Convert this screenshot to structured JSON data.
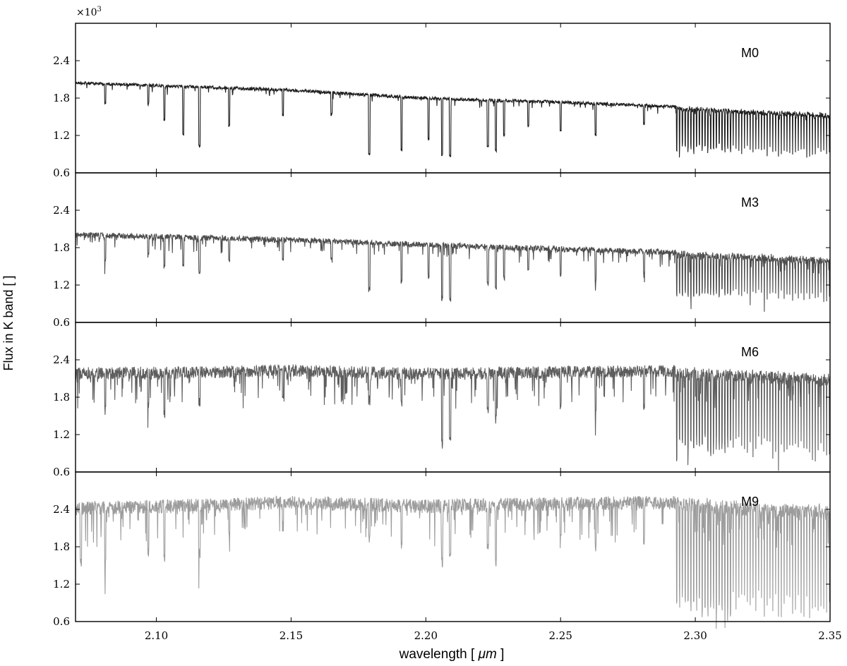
{
  "chart_data": {
    "type": "line",
    "layout": "4 vertically stacked panels sharing x axis",
    "multiplier_label": "×10",
    "multiplier_exponent": "3",
    "xlabel_prefix": "wavelength [ ",
    "xlabel_unit": "μm",
    "xlabel_suffix": " ]",
    "ylabel": "Flux in K band [ ]",
    "xlim": [
      2.07,
      2.35
    ],
    "ylim": [
      0.6,
      3.0
    ],
    "x_ticks": [
      "2.10",
      "2.15",
      "2.20",
      "2.25",
      "2.30",
      "2.35"
    ],
    "y_ticks": [
      "0.6",
      "1.2",
      "1.8",
      "2.4"
    ],
    "grid": false,
    "panels": [
      {
        "label": "M0",
        "color": "#1f1f1f",
        "continuum": [
          [
            2.07,
            2.07
          ],
          [
            2.15,
            1.95
          ],
          [
            2.2,
            1.82
          ],
          [
            2.25,
            1.76
          ],
          [
            2.29,
            1.69
          ],
          [
            2.35,
            1.57
          ]
        ],
        "noise": 0.05,
        "density": 0.35,
        "co_start": 2.293,
        "co_depth": 0.72,
        "deep_lines": [
          [
            2.081,
            0.32
          ],
          [
            2.097,
            0.3
          ],
          [
            2.103,
            0.55
          ],
          [
            2.11,
            0.75
          ],
          [
            2.116,
            0.95
          ],
          [
            2.127,
            0.6
          ],
          [
            2.147,
            0.4
          ],
          [
            2.165,
            0.35
          ],
          [
            2.179,
            0.95
          ],
          [
            2.191,
            0.85
          ],
          [
            2.201,
            0.65
          ],
          [
            2.206,
            0.9
          ],
          [
            2.209,
            0.9
          ],
          [
            2.223,
            0.75
          ],
          [
            2.226,
            0.8
          ],
          [
            2.229,
            0.55
          ],
          [
            2.238,
            0.4
          ],
          [
            2.25,
            0.45
          ],
          [
            2.263,
            0.5
          ],
          [
            2.281,
            0.3
          ]
        ]
      },
      {
        "label": "M3",
        "color": "#4d4d4d",
        "continuum": [
          [
            2.07,
            2.05
          ],
          [
            2.15,
            1.97
          ],
          [
            2.2,
            1.89
          ],
          [
            2.25,
            1.82
          ],
          [
            2.29,
            1.77
          ],
          [
            2.35,
            1.66
          ]
        ],
        "noise": 0.09,
        "density": 0.5,
        "co_start": 2.293,
        "co_depth": 0.7,
        "deep_lines": [
          [
            2.081,
            0.4
          ],
          [
            2.097,
            0.3
          ],
          [
            2.103,
            0.5
          ],
          [
            2.11,
            0.45
          ],
          [
            2.116,
            0.55
          ],
          [
            2.127,
            0.35
          ],
          [
            2.147,
            0.35
          ],
          [
            2.165,
            0.3
          ],
          [
            2.179,
            0.75
          ],
          [
            2.191,
            0.6
          ],
          [
            2.201,
            0.5
          ],
          [
            2.206,
            0.85
          ],
          [
            2.209,
            0.85
          ],
          [
            2.223,
            0.6
          ],
          [
            2.226,
            0.65
          ],
          [
            2.229,
            0.5
          ],
          [
            2.238,
            0.35
          ],
          [
            2.25,
            0.4
          ],
          [
            2.263,
            0.5
          ],
          [
            2.281,
            0.3
          ]
        ]
      },
      {
        "label": "M6",
        "color": "#5e5e5e",
        "continuum": [
          [
            2.07,
            2.28
          ],
          [
            2.12,
            2.3
          ],
          [
            2.15,
            2.33
          ],
          [
            2.2,
            2.27
          ],
          [
            2.25,
            2.3
          ],
          [
            2.29,
            2.32
          ],
          [
            2.35,
            2.2
          ]
        ],
        "noise": 0.2,
        "density": 0.7,
        "co_start": 2.293,
        "co_depth": 1.3,
        "deep_lines": [
          [
            2.081,
            0.6
          ],
          [
            2.097,
            0.5
          ],
          [
            2.103,
            0.65
          ],
          [
            2.116,
            0.5
          ],
          [
            2.147,
            0.35
          ],
          [
            2.179,
            0.45
          ],
          [
            2.191,
            0.5
          ],
          [
            2.206,
            1.1
          ],
          [
            2.209,
            1.0
          ],
          [
            2.223,
            0.6
          ],
          [
            2.226,
            0.75
          ],
          [
            2.25,
            0.5
          ],
          [
            2.263,
            0.6
          ],
          [
            2.281,
            0.55
          ]
        ]
      },
      {
        "label": "M9",
        "color": "#9c9c9c",
        "continuum": [
          [
            2.07,
            2.52
          ],
          [
            2.12,
            2.58
          ],
          [
            2.15,
            2.62
          ],
          [
            2.2,
            2.56
          ],
          [
            2.25,
            2.6
          ],
          [
            2.29,
            2.62
          ],
          [
            2.35,
            2.48
          ]
        ],
        "noise": 0.22,
        "density": 0.75,
        "co_start": 2.293,
        "co_depth": 1.75,
        "deep_lines": [
          [
            2.072,
            0.9
          ],
          [
            2.081,
            0.9
          ],
          [
            2.097,
            0.7
          ],
          [
            2.103,
            0.8
          ],
          [
            2.116,
            0.8
          ],
          [
            2.127,
            0.5
          ],
          [
            2.147,
            0.4
          ],
          [
            2.179,
            0.5
          ],
          [
            2.191,
            0.6
          ],
          [
            2.206,
            0.9
          ],
          [
            2.209,
            0.8
          ],
          [
            2.223,
            0.7
          ],
          [
            2.226,
            0.9
          ],
          [
            2.25,
            0.6
          ],
          [
            2.263,
            0.7
          ],
          [
            2.281,
            0.6
          ]
        ]
      }
    ]
  }
}
